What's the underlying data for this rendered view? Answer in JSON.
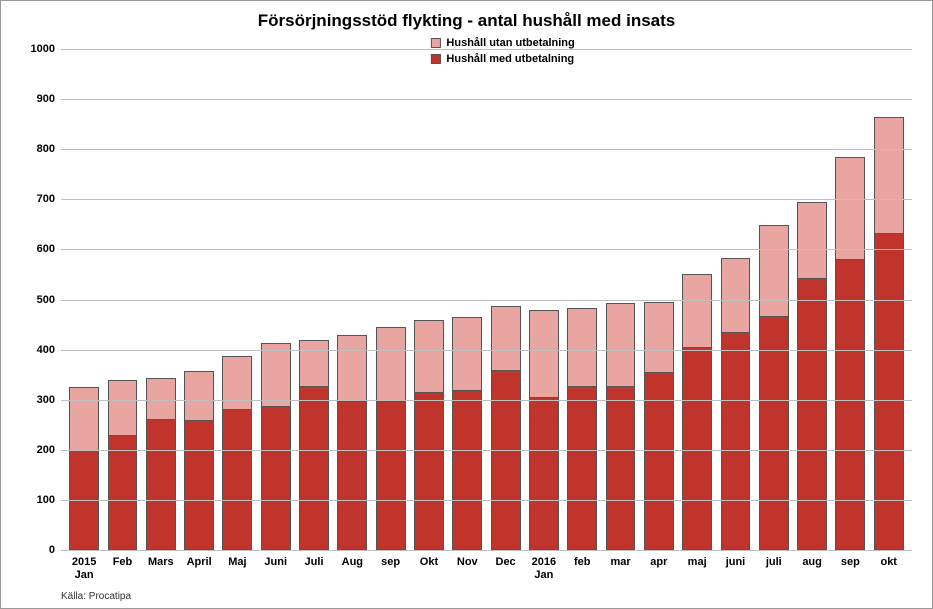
{
  "chart": {
    "type": "bar-stacked",
    "title": "Försörjningsstöd flykting - antal hushåll med insats",
    "title_fontsize": 17,
    "background_color": "#ffffff",
    "grid_color": "#bfbfbf",
    "axis_label_fontsize": 11,
    "axis_label_color": "#000000",
    "ylim": [
      0,
      1000
    ],
    "ytick_step": 100,
    "yticks": [
      0,
      100,
      200,
      300,
      400,
      500,
      600,
      700,
      800,
      900,
      1000
    ],
    "categories": [
      "2015\nJan",
      "Feb",
      "Mars",
      "April",
      "Maj",
      "Juni",
      "Juli",
      "Aug",
      "sep",
      "Okt",
      "Nov",
      "Dec",
      "2016\nJan",
      "feb",
      "mar",
      "apr",
      "maj",
      "juni",
      "juli",
      "aug",
      "sep",
      "okt"
    ],
    "series": [
      {
        "key": "med",
        "label": "Hushåll med utbetalning",
        "color": "#c0342c"
      },
      {
        "key": "utan",
        "label": "Hushåll utan utbetalning",
        "color": "#e8a5a1"
      }
    ],
    "legend_order": [
      "utan",
      "med"
    ],
    "legend_fontsize": 11,
    "legend_swatch_border": "#555555",
    "data": {
      "med": [
        200,
        230,
        262,
        260,
        282,
        288,
        328,
        298,
        298,
        315,
        320,
        360,
        305,
        328,
        328,
        355,
        405,
        435,
        468,
        542,
        580,
        632
      ],
      "utan": [
        125,
        110,
        82,
        98,
        105,
        125,
        92,
        132,
        148,
        145,
        145,
        128,
        175,
        155,
        165,
        140,
        145,
        148,
        180,
        153,
        205,
        233
      ]
    },
    "bar_border_color": "#555555",
    "bar_width_ratio": 0.78
  },
  "source_label": "Källa: Procatipa",
  "source_fontsize": 10
}
